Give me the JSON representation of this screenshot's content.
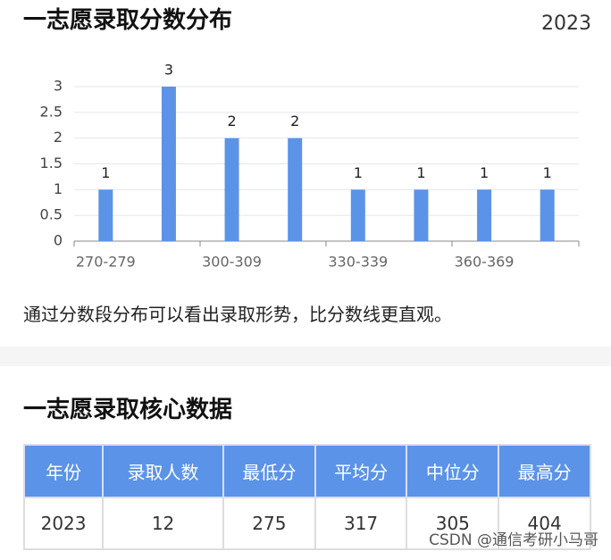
{
  "title": "一志愿录取分数分布",
  "year": "2023",
  "chart_data": {
    "type": "bar",
    "categories": [
      "270-279",
      null,
      "300-309",
      null,
      "330-339",
      null,
      "360-369",
      null
    ],
    "values": [
      1,
      3,
      2,
      2,
      1,
      1,
      1,
      1
    ],
    "color": "#5b93e8",
    "ylim": [
      0,
      3
    ],
    "yticks": [
      0,
      0.5,
      1,
      1.5,
      2,
      2.5,
      3
    ],
    "grid": true
  },
  "caption": "通过分数段分布可以看出录取形势，比分数线更直观。",
  "section_title": "一志愿录取核心数据",
  "table": {
    "header": [
      "年份",
      "录取人数",
      "最低分",
      "平均分",
      "中位分",
      "最高分"
    ],
    "rows": [
      [
        2023,
        12,
        275,
        317,
        305,
        404
      ]
    ]
  },
  "watermark": "CSDN @通信考研小马哥"
}
